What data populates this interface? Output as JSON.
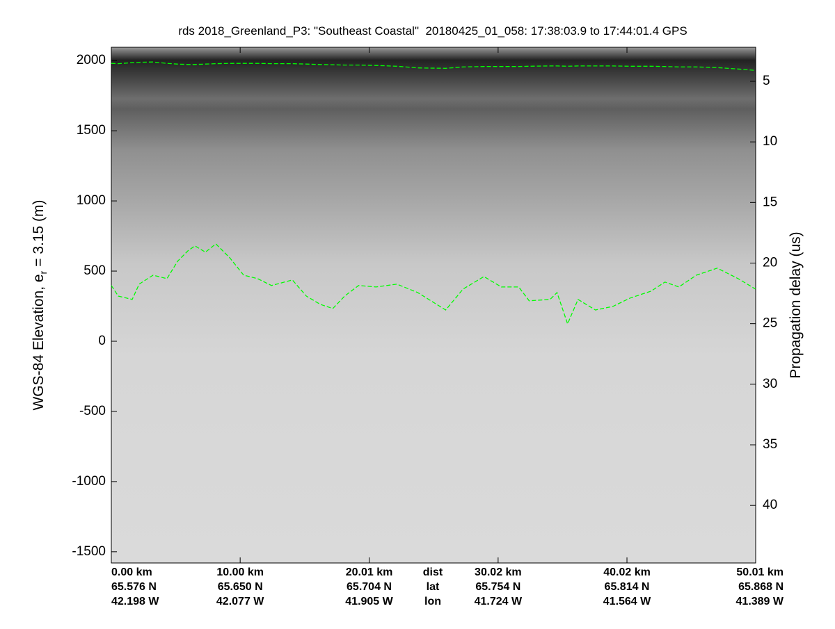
{
  "chart_data": {
    "type": "radargram",
    "title": "rds 2018_Greenland_P3: \"Southeast Coastal\"  20180425_01_058: 17:38:03.9 to 17:44:01.4 GPS",
    "ylabel": "WGS-84 Elevation, e",
    "ylabel_sub": "r",
    "ylabel_tail": "= 3.15 (m)",
    "y2label": "Propagation delay (us)",
    "xlim": [
      0,
      50.01
    ],
    "xticks": [
      {
        "value": 0,
        "label": "0.00 km"
      },
      {
        "value": 10.0,
        "label": "10.00 km"
      },
      {
        "value": 20.01,
        "label": "20.01 km"
      },
      {
        "value": 30.02,
        "label": "30.02 km"
      },
      {
        "value": 40.02,
        "label": "40.02 km"
      },
      {
        "value": 50.01,
        "label": "50.01 km"
      }
    ],
    "xtick_lat": [
      "65.576 N",
      "65.650 N",
      "65.704 N",
      "65.754 N",
      "65.814 N",
      "65.868 N"
    ],
    "xtick_lon": [
      "42.198 W",
      "42.077 W",
      "41.905 W",
      "41.724 W",
      "41.564 W",
      "41.389 W"
    ],
    "xtick_row_labels": [
      "dist",
      "lat",
      "lon"
    ],
    "ylim": [
      -1580,
      2095
    ],
    "yticks": [
      -1500,
      -1000,
      -500,
      0,
      500,
      1000,
      1500,
      2000
    ],
    "y2lim": [
      2.19,
      44.75
    ],
    "y2ticks": [
      5,
      10,
      15,
      20,
      25,
      30,
      35,
      40
    ],
    "x": [
      0,
      0.54,
      1.62,
      2.16,
      3.24,
      4.32,
      5.14,
      5.95,
      6.49,
      7.3,
      8.11,
      9.19,
      10.27,
      11.35,
      12.43,
      14.05,
      15.14,
      16.22,
      17.19,
      18.11,
      19.19,
      20.54,
      22.16,
      23.78,
      25.95,
      27.3,
      28.92,
      30.27,
      31.62,
      32.43,
      34.05,
      34.59,
      35.41,
      36.22,
      37.57,
      38.92,
      40.27,
      41.89,
      42.97,
      44.05,
      45.41,
      47.03,
      48.65,
      50.0
    ],
    "series": [
      {
        "color": "#00ff00",
        "values": [
          1980,
          1978,
          1985,
          1988,
          1990,
          1980,
          1975,
          1972,
          1972,
          1975,
          1978,
          1980,
          1980,
          1980,
          1978,
          1978,
          1975,
          1972,
          1970,
          1968,
          1968,
          1965,
          1960,
          1948,
          1945,
          1955,
          1958,
          1958,
          1958,
          1960,
          1962,
          1962,
          1960,
          1962,
          1962,
          1962,
          1960,
          1960,
          1958,
          1955,
          1955,
          1950,
          1940,
          1930
        ]
      },
      {
        "color": "#00ff00",
        "values": [
          397,
          322,
          298,
          407,
          471,
          446,
          570,
          645,
          680,
          635,
          694,
          595,
          471,
          446,
          397,
          437,
          322,
          263,
          233,
          322,
          397,
          387,
          407,
          347,
          223,
          372,
          461,
          387,
          387,
          288,
          298,
          347,
          124,
          298,
          223,
          248,
          308,
          357,
          422,
          387,
          471,
          521,
          446,
          372
        ]
      }
    ]
  }
}
